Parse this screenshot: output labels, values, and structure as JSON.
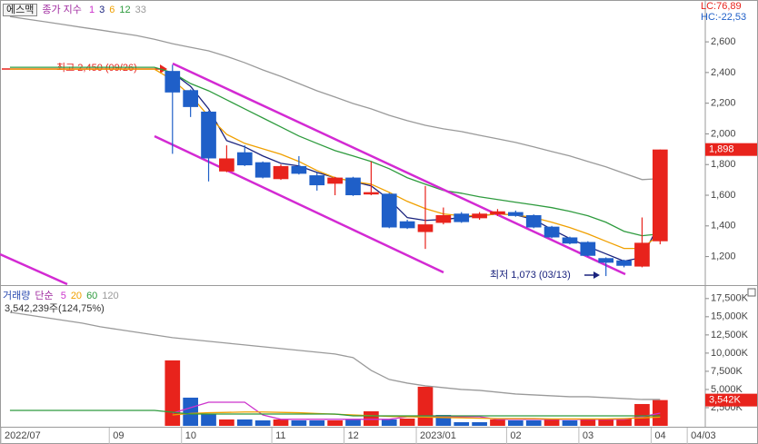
{
  "chart_data": [
    {
      "type": "candlestick",
      "title": "에스맥",
      "legend_title": "종가 지수",
      "corner_labels": [
        "LC:76,89",
        "HC:-22,53"
      ],
      "annotations": [
        "최고 2,450 (09/26)",
        "최저 1,073 (03/13)"
      ],
      "ylim": [
        1020,
        2855
      ],
      "yticks": [
        {
          "value": 1200,
          "label": "1,200"
        },
        {
          "value": 1400,
          "label": "1,400"
        },
        {
          "value": 1600,
          "label": "1,600"
        },
        {
          "value": 1800,
          "label": "1,800"
        },
        {
          "value": 2000,
          "label": "2,000"
        },
        {
          "value": 2200,
          "label": "2,200"
        },
        {
          "value": 2400,
          "label": "2,400"
        },
        {
          "value": 2600,
          "label": "2,600"
        }
      ],
      "last_badge": {
        "value": 1898,
        "label": "1,898"
      },
      "grid": false,
      "candles": {
        "name": "1",
        "color": "#cc33cc",
        "up_color": "#e8231c",
        "down_color": "#1f5fc8",
        "open": [
          null,
          null,
          null,
          null,
          null,
          null,
          null,
          null,
          null,
          2410,
          2285,
          2145,
          1755,
          1880,
          1815,
          1705,
          1790,
          1730,
          1675,
          1715,
          1605,
          1610,
          1430,
          1360,
          1420,
          1480,
          1450,
          1475,
          1490,
          1470,
          1395,
          1325,
          1295,
          1190,
          1175,
          1135,
          1300,
          null,
          null
        ],
        "high": [
          null,
          null,
          null,
          null,
          null,
          null,
          null,
          null,
          null,
          2450,
          2290,
          2150,
          1925,
          1925,
          1820,
          1800,
          1855,
          1745,
          1720,
          1720,
          1820,
          1615,
          1440,
          1660,
          1520,
          1490,
          1490,
          1510,
          1500,
          1475,
          1400,
          1330,
          1300,
          1195,
          1180,
          1455,
          1898,
          null,
          null
        ],
        "low": [
          null,
          null,
          null,
          null,
          null,
          null,
          null,
          null,
          null,
          1870,
          2110,
          1690,
          1750,
          1790,
          1710,
          1700,
          1735,
          1630,
          1600,
          1595,
          1600,
          1385,
          1380,
          1250,
          1410,
          1420,
          1440,
          1465,
          1460,
          1385,
          1320,
          1280,
          1200,
          1073,
          1130,
          1130,
          1280,
          null,
          null
        ],
        "close": [
          null,
          null,
          null,
          null,
          null,
          null,
          null,
          null,
          null,
          2270,
          2175,
          1840,
          1840,
          1795,
          1715,
          1790,
          1740,
          1665,
          1715,
          1600,
          1620,
          1390,
          1385,
          1410,
          1470,
          1425,
          1480,
          1495,
          1465,
          1390,
          1325,
          1285,
          1205,
          1160,
          1140,
          1290,
          1898,
          null,
          null
        ]
      },
      "series": [
        {
          "name": "3",
          "color": "#1a237e",
          "values": [
            null,
            null,
            null,
            null,
            null,
            null,
            null,
            null,
            null,
            2399,
            2310,
            2163,
            1956,
            1915,
            1856,
            1808,
            1791,
            1749,
            1714,
            1690,
            1661,
            1572,
            1454,
            1436,
            1442,
            1454,
            1466,
            1478,
            1472,
            1442,
            1377,
            1318,
            1265,
            1218,
            1170,
            1194,
            1424,
            null,
            null
          ]
        },
        {
          "name": "6",
          "color": "#f0a000",
          "values": [
            2422,
            2422,
            2422,
            2422,
            2422,
            2422,
            2422,
            2422,
            2422,
            2352,
            2251,
            2115,
            1997,
            1938,
            1903,
            1867,
            1820,
            1761,
            1714,
            1690,
            1672,
            1619,
            1560,
            1513,
            1478,
            1466,
            1466,
            1478,
            1472,
            1454,
            1424,
            1389,
            1348,
            1300,
            1253,
            1253,
            1348,
            null,
            null
          ]
        },
        {
          "name": "12",
          "color": "#2e9b3e",
          "values": [
            2434,
            2434,
            2434,
            2434,
            2434,
            2434,
            2434,
            2434,
            2434,
            2399,
            2328,
            2281,
            2222,
            2163,
            2104,
            2045,
            1986,
            1938,
            1891,
            1856,
            1820,
            1773,
            1714,
            1672,
            1631,
            1613,
            1590,
            1572,
            1554,
            1537,
            1519,
            1495,
            1466,
            1424,
            1365,
            1336,
            1348,
            null,
            null
          ]
        },
        {
          "name": "33",
          "color": "#9a9a9a",
          "values": [
            2765,
            2747,
            2730,
            2712,
            2694,
            2677,
            2659,
            2641,
            2617,
            2588,
            2564,
            2541,
            2505,
            2464,
            2417,
            2375,
            2328,
            2281,
            2240,
            2198,
            2163,
            2121,
            2086,
            2056,
            2033,
            2015,
            1991,
            1968,
            1944,
            1915,
            1885,
            1856,
            1820,
            1785,
            1743,
            1702,
            1708,
            null,
            null
          ]
        }
      ]
    },
    {
      "type": "bar",
      "title": "거래량",
      "legend_title": "단순",
      "info": "3,542,239주(124,75%)",
      "categories": [
        "2022/07",
        null,
        null,
        null,
        null,
        null,
        "09",
        null,
        null,
        null,
        "10",
        null,
        null,
        null,
        null,
        "11",
        null,
        null,
        null,
        "12",
        null,
        null,
        null,
        "2023/01",
        null,
        null,
        null,
        null,
        "02",
        null,
        null,
        null,
        "03",
        null,
        null,
        null,
        "04",
        null,
        "04/03"
      ],
      "values": [
        null,
        null,
        null,
        null,
        null,
        null,
        null,
        null,
        null,
        9000,
        3875,
        1625,
        875,
        875,
        750,
        875,
        750,
        750,
        750,
        875,
        2000,
        875,
        1000,
        5375,
        1500,
        500,
        500,
        875,
        750,
        750,
        875,
        750,
        875,
        875,
        1000,
        3000,
        3542,
        null,
        null
      ],
      "colors": [
        null,
        null,
        null,
        null,
        null,
        null,
        null,
        null,
        null,
        "#e8231c",
        "#1f5fc8",
        "#1f5fc8",
        "#e8231c",
        "#1f5fc8",
        "#1f5fc8",
        "#e8231c",
        "#1f5fc8",
        "#1f5fc8",
        "#e8231c",
        "#1f5fc8",
        "#e8231c",
        "#1f5fc8",
        "#e8231c",
        "#e8231c",
        "#1f5fc8",
        "#1f5fc8",
        "#1f5fc8",
        "#e8231c",
        "#1f5fc8",
        "#1f5fc8",
        "#e8231c",
        "#1f5fc8",
        "#e8231c",
        "#e8231c",
        "#e8231c",
        "#e8231c",
        "#e8231c",
        null,
        null
      ],
      "ylim": [
        0,
        19100
      ],
      "yticks": [
        {
          "value": 2500,
          "label": "2,500K"
        },
        {
          "value": 5000,
          "label": "5,000K"
        },
        {
          "value": 7500,
          "label": "7,500K"
        },
        {
          "value": 10000,
          "label": "10,000K"
        },
        {
          "value": 12500,
          "label": "12,500K"
        },
        {
          "value": 15000,
          "label": "15,000K"
        },
        {
          "value": 17500,
          "label": "17,500K"
        }
      ],
      "last_badge": {
        "value": 3542,
        "label": "3,542K"
      },
      "series": [
        {
          "name": "5",
          "color": "#cc33cc",
          "values": [
            null,
            null,
            null,
            null,
            null,
            null,
            null,
            null,
            null,
            1750,
            2500,
            3250,
            3250,
            3250,
            1500,
            900,
            900,
            900,
            900,
            900,
            900,
            900,
            1250,
            1250,
            1250,
            1250,
            1250,
            900,
            900,
            900,
            900,
            900,
            900,
            900,
            900,
            1250,
            1750,
            null,
            null
          ]
        },
        {
          "name": "20",
          "color": "#f0a000",
          "values": [
            null,
            null,
            null,
            null,
            null,
            null,
            null,
            null,
            null,
            1500,
            1700,
            1800,
            1850,
            1900,
            1900,
            1850,
            1800,
            1700,
            1600,
            1500,
            1400,
            1300,
            1250,
            1200,
            1150,
            1100,
            1050,
            1000,
            1000,
            1000,
            950,
            950,
            950,
            950,
            1000,
            1100,
            1200,
            null,
            null
          ]
        },
        {
          "name": "60",
          "color": "#2e9b3e",
          "values": [
            2125,
            2125,
            2125,
            2125,
            2125,
            2125,
            2125,
            2125,
            2125,
            1875,
            1625,
            1625,
            1625,
            1625,
            1625,
            1625,
            1625,
            1625,
            1625,
            1375,
            1375,
            1375,
            1375,
            1375,
            1375,
            1375,
            1375,
            1375,
            1375,
            1375,
            1375,
            1375,
            1375,
            1375,
            1375,
            1375,
            1375,
            null,
            null
          ]
        },
        {
          "name": "120",
          "color": "#9a9a9a",
          "values": [
            15625,
            15250,
            14875,
            14500,
            14125,
            13625,
            13250,
            12875,
            12500,
            12125,
            11875,
            11625,
            11375,
            11125,
            10875,
            10625,
            10375,
            10125,
            9875,
            9375,
            7625,
            6375,
            5875,
            5500,
            5250,
            5000,
            4875,
            4625,
            4375,
            4250,
            4125,
            4000,
            4000,
            3875,
            3750,
            3625,
            3625,
            null,
            null
          ]
        }
      ]
    }
  ]
}
